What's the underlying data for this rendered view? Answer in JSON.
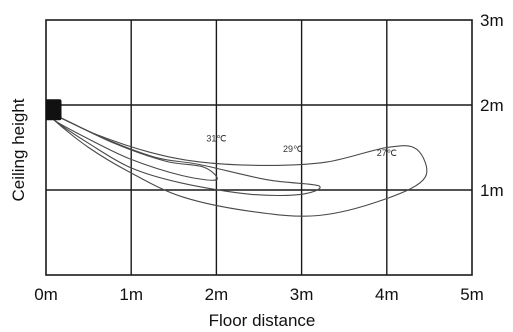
{
  "chart_data": {
    "type": "line",
    "xlabel": "Floor distance",
    "ylabel": "Ceiling height",
    "xlim": [
      0,
      5
    ],
    "ylim": [
      0,
      3
    ],
    "x_ticks": [
      "0m",
      "1m",
      "2m",
      "3m",
      "4m",
      "5m"
    ],
    "y_ticks_right": [
      "1m",
      "2m",
      "3m"
    ],
    "grid": true,
    "source": {
      "x": 0.1,
      "y": 1.95
    },
    "series": [
      {
        "name": "31℃",
        "label_at": {
          "x": 2.0,
          "y": 1.57
        },
        "points": [
          [
            0.1,
            1.88
          ],
          [
            0.8,
            1.55
          ],
          [
            1.4,
            1.34
          ],
          [
            1.85,
            1.27
          ],
          [
            2.0,
            1.12
          ],
          [
            1.6,
            1.17
          ],
          [
            1.0,
            1.36
          ],
          [
            0.5,
            1.6
          ],
          [
            0.1,
            1.82
          ]
        ]
      },
      {
        "name": "29℃",
        "label_at": {
          "x": 2.9,
          "y": 1.45
        },
        "points": [
          [
            0.1,
            1.88
          ],
          [
            0.7,
            1.6
          ],
          [
            1.3,
            1.38
          ],
          [
            1.8,
            1.3
          ],
          [
            2.6,
            1.12
          ],
          [
            3.2,
            1.05
          ],
          [
            3.0,
            0.95
          ],
          [
            2.4,
            0.95
          ],
          [
            1.6,
            1.08
          ],
          [
            1.0,
            1.26
          ],
          [
            0.5,
            1.55
          ],
          [
            0.1,
            1.82
          ]
        ]
      },
      {
        "name": "27℃",
        "label_at": {
          "x": 4.0,
          "y": 1.4
        },
        "points": [
          [
            0.1,
            1.88
          ],
          [
            0.6,
            1.65
          ],
          [
            1.2,
            1.45
          ],
          [
            1.8,
            1.33
          ],
          [
            2.6,
            1.29
          ],
          [
            3.3,
            1.33
          ],
          [
            4.0,
            1.5
          ],
          [
            4.35,
            1.48
          ],
          [
            4.45,
            1.15
          ],
          [
            4.0,
            0.9
          ],
          [
            3.2,
            0.7
          ],
          [
            2.4,
            0.75
          ],
          [
            1.6,
            0.92
          ],
          [
            1.0,
            1.2
          ],
          [
            0.5,
            1.5
          ],
          [
            0.1,
            1.82
          ]
        ]
      }
    ]
  }
}
